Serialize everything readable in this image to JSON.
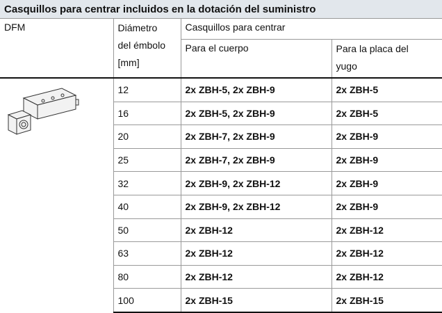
{
  "title": "Casquillos para centrar incluidos en la dotación del suministro",
  "header": {
    "model": "DFM",
    "diameter": [
      "Diámetro",
      "del émbolo",
      "[mm]"
    ],
    "group": "Casquillos para centrar",
    "body": "Para el cuerpo",
    "yoke": [
      "Para la placa del",
      "yugo"
    ]
  },
  "table": {
    "rows": [
      [
        12,
        "2x ZBH-5, 2x ZBH-9",
        "2x ZBH-5"
      ],
      [
        16,
        "2x ZBH-5, 2x ZBH-9",
        "2x ZBH-5"
      ],
      [
        20,
        "2x ZBH-7, 2x ZBH-9",
        "2x ZBH-9"
      ],
      [
        25,
        "2x ZBH-7, 2x ZBH-9",
        "2x ZBH-9"
      ],
      [
        32,
        "2x ZBH-9, 2x ZBH-12",
        "2x ZBH-9"
      ],
      [
        40,
        "2x ZBH-9, 2x ZBH-12",
        "2x ZBH-9"
      ],
      [
        50,
        "2x ZBH-12",
        "2x ZBH-12"
      ],
      [
        63,
        "2x ZBH-12",
        "2x ZBH-12"
      ],
      [
        80,
        "2x ZBH-12",
        "2x ZBH-12"
      ],
      [
        100,
        "2x ZBH-15",
        "2x ZBH-15"
      ]
    ]
  }
}
